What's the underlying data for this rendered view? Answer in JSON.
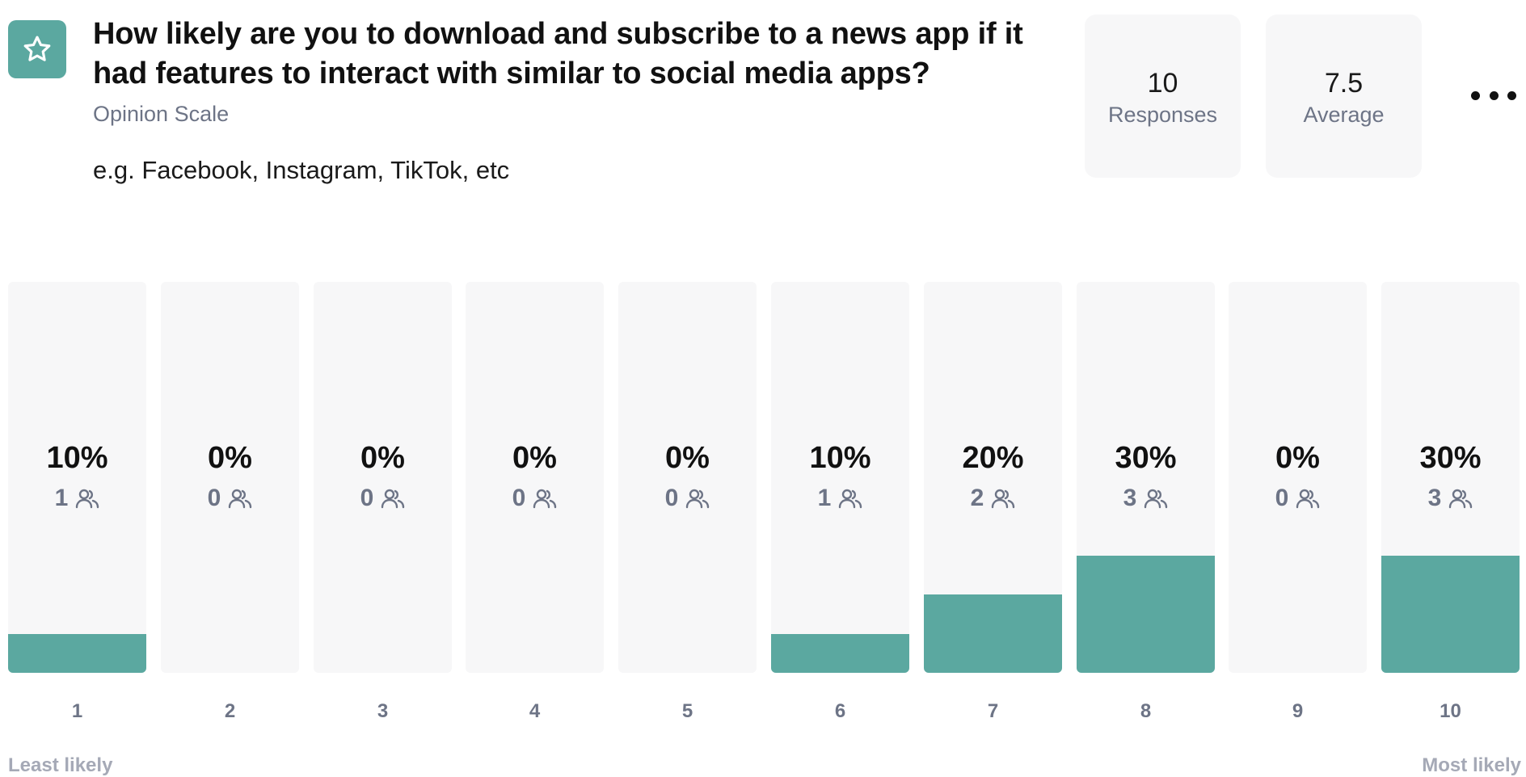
{
  "question": {
    "icon": "star-icon",
    "title": "How likely are you to download and subscribe to a news app if it had features to interact with similar to social media apps?",
    "type": "Opinion Scale",
    "description": "e.g. Facebook, Instagram, TikTok, etc"
  },
  "stats": {
    "responses": {
      "value": "10",
      "label": "Responses"
    },
    "average": {
      "value": "7.5",
      "label": "Average"
    }
  },
  "colors": {
    "accent": "#5ba8a0",
    "column_bg": "#f7f7f8",
    "muted_text": "#6d7486",
    "scale_label": "#a5a9b6"
  },
  "chart_data": {
    "type": "bar",
    "categories": [
      "1",
      "2",
      "3",
      "4",
      "5",
      "6",
      "7",
      "8",
      "9",
      "10"
    ],
    "values": [
      10,
      0,
      0,
      0,
      0,
      10,
      20,
      30,
      0,
      30
    ],
    "counts": [
      1,
      0,
      0,
      0,
      0,
      1,
      2,
      3,
      0,
      3
    ],
    "percent_labels": [
      "10%",
      "0%",
      "0%",
      "0%",
      "0%",
      "10%",
      "20%",
      "30%",
      "0%",
      "30%"
    ],
    "ylim": [
      0,
      100
    ],
    "count_icon": "people-icon",
    "scale_min_label": "Least likely",
    "scale_max_label": "Most likely"
  }
}
